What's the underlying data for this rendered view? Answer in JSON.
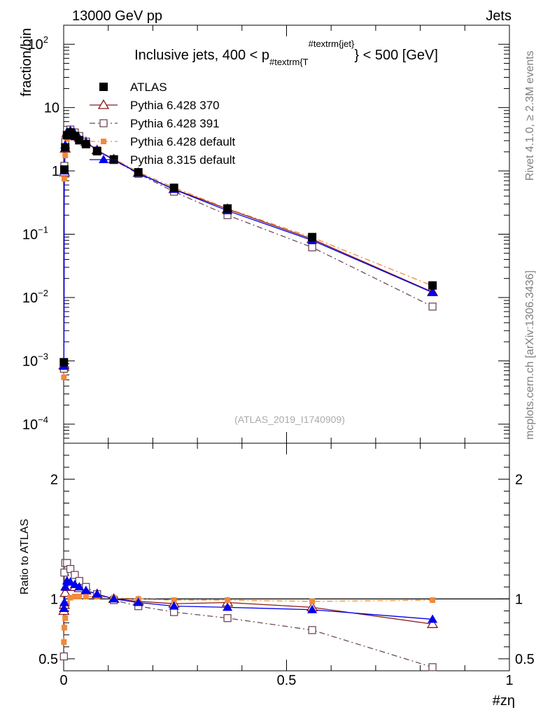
{
  "header": {
    "energy": "13000 GeV pp",
    "category": "Jets",
    "rivet": "Rivet 4.1.0, ≥ 2.3M events",
    "site": "mcplots.cern.ch [arXiv:1306.3436]"
  },
  "chart_data": {
    "type": "line",
    "title": "Inclusive jets, 400 < p",
    "title_sub": "#textrm{T",
    "title_sup": "#textrm{jet}",
    "title_tail": "} < 500 [GeV]",
    "analysis": "(ATLAS_2019_I1740909)",
    "ylabel": "fraction/bin",
    "ratio_ylabel": "Ratio to ATLAS",
    "xlabel": "#zη",
    "xlim": [
      0,
      1
    ],
    "ylim": [
      5e-05,
      200
    ],
    "ratio_ylim": [
      0.4,
      2.3
    ],
    "x_ticks": [
      "0",
      "0.5",
      "1"
    ],
    "y_ticks": [
      {
        "v": 0.0001,
        "b": "10",
        "e": "−4"
      },
      {
        "v": 0.001,
        "b": "10",
        "e": "−3"
      },
      {
        "v": 0.01,
        "b": "10",
        "e": "−2"
      },
      {
        "v": 0.1,
        "b": "10",
        "e": "−1"
      },
      {
        "v": 1,
        "b": "1",
        "e": ""
      },
      {
        "v": 10,
        "b": "10",
        "e": ""
      },
      {
        "v": 100,
        "b": "10",
        "e": "2"
      }
    ],
    "ratio_ticks": [
      "0.5",
      "1",
      "2"
    ],
    "x": [
      0.0005,
      0.0015,
      0.0035,
      0.0075,
      0.015,
      0.025,
      0.035,
      0.05,
      0.075,
      0.1125,
      0.1675,
      0.2475,
      0.3675,
      0.5575,
      0.8275
    ],
    "series": [
      {
        "name": "ATLAS",
        "color": "#000000",
        "marker": "square-filled",
        "line": "none",
        "values": [
          0.00095,
          1.05,
          2.35,
          3.65,
          4.05,
          3.55,
          3.05,
          2.65,
          2.05,
          1.52,
          0.95,
          0.54,
          0.255,
          0.09,
          0.0155
        ],
        "ratio": [
          1,
          1,
          1,
          1,
          1,
          1,
          1,
          1,
          1,
          1,
          1,
          1,
          1,
          1,
          1
        ]
      },
      {
        "name": "Pythia 6.428 370",
        "color": "#8b1a1a",
        "marker": "triangle-open",
        "line": "solid",
        "values": [
          0.00085,
          0.95,
          2.25,
          3.95,
          4.25,
          3.85,
          3.35,
          2.85,
          2.12,
          1.52,
          0.93,
          0.515,
          0.25,
          0.084,
          0.0122
        ],
        "ratio": [
          0.9,
          0.95,
          1.05,
          1.1,
          1.1,
          1.1,
          1.09,
          1.07,
          1.04,
          1.0,
          0.98,
          0.96,
          0.97,
          0.93,
          0.79
        ]
      },
      {
        "name": "Pythia 6.428 391",
        "color": "#6b4a5a",
        "marker": "square-open",
        "line": "dashdot",
        "values": [
          0.00075,
          1.2,
          2.9,
          4.45,
          4.5,
          4.05,
          3.55,
          2.9,
          2.1,
          1.48,
          0.9,
          0.47,
          0.2,
          0.062,
          0.0072
        ],
        "ratio": [
          0.52,
          1.22,
          1.3,
          1.3,
          1.25,
          1.2,
          1.15,
          1.1,
          1.04,
          0.99,
          0.94,
          0.89,
          0.84,
          0.74,
          0.43
        ]
      },
      {
        "name": "Pythia 6.428 default",
        "color": "#f08a3c",
        "marker": "square-filled-small",
        "line": "dashdot",
        "values": [
          0.00055,
          0.75,
          1.75,
          3.2,
          4.0,
          3.55,
          3.05,
          2.7,
          2.1,
          1.56,
          0.96,
          0.545,
          0.255,
          0.089,
          0.0153
        ],
        "ratio": [
          0.64,
          0.76,
          0.84,
          0.96,
          1.01,
          1.02,
          1.02,
          1.02,
          1.02,
          1.01,
          1.0,
          0.99,
          0.99,
          0.98,
          0.99
        ]
      },
      {
        "name": "Pythia 8.315 default",
        "color": "#0000ee",
        "marker": "triangle-filled",
        "line": "solid",
        "values": [
          0.00082,
          1.0,
          2.55,
          4.1,
          4.35,
          3.9,
          3.3,
          2.85,
          2.1,
          1.5,
          0.92,
          0.51,
          0.235,
          0.08,
          0.012
        ],
        "ratio": [
          0.92,
          0.97,
          1.1,
          1.15,
          1.14,
          1.12,
          1.1,
          1.07,
          1.04,
          1.0,
          0.97,
          0.94,
          0.93,
          0.91,
          0.83
        ]
      }
    ]
  }
}
